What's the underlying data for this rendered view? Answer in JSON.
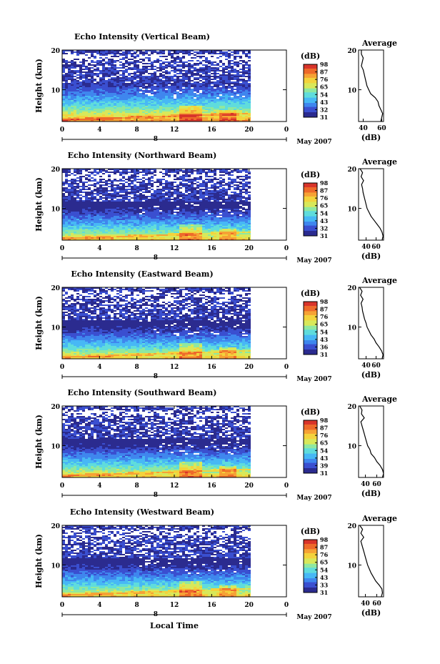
{
  "figure": {
    "xlabel": "Local Time",
    "date_label": "May 2007",
    "day_label": "8",
    "avg_title": "Average",
    "avg_xlabel": "(dB)",
    "cb_unit": "(dB)",
    "ylabel": "Height (km)"
  },
  "colors": {
    "scale": [
      "#2b2b8f",
      "#3a4fd0",
      "#3f86ee",
      "#47b8f5",
      "#5fdcdc",
      "#8fe8a0",
      "#d8e85a",
      "#f3d33c",
      "#f6a235",
      "#ee6a2a",
      "#d8342a"
    ]
  },
  "chart_data": [
    {
      "type": "heatmap",
      "title": "Echo Intensity (Vertical Beam)",
      "ylabel": "Height (km)",
      "xlabel": "",
      "x_ticks": [
        "0",
        "4",
        "8",
        "12",
        "16",
        "20",
        "0"
      ],
      "xlim": [
        0,
        24
      ],
      "y_ticks": [
        "10",
        "20"
      ],
      "ylim": [
        2,
        20
      ],
      "data_xlim": [
        0,
        20
      ],
      "colorbar": {
        "label": "(dB)",
        "ticks": [
          "31",
          "32",
          "43",
          "54",
          "65",
          "76",
          "87",
          "98"
        ]
      },
      "base_intensity": 62,
      "profile": {
        "title": "Average",
        "xlabel": "(dB)",
        "x_ticks": [
          "40",
          "60"
        ],
        "xlim": [
          35,
          62
        ],
        "y_ticks": [
          "10",
          "20"
        ],
        "heights": [
          2,
          3,
          4,
          5,
          6,
          7,
          8,
          9,
          10,
          11,
          12,
          13,
          14,
          15,
          16,
          17,
          18,
          19,
          20
        ],
        "values": [
          59,
          60,
          61,
          59,
          57,
          56,
          53,
          48,
          46,
          44,
          43,
          42,
          41,
          40,
          38,
          39,
          40,
          38,
          38
        ]
      }
    },
    {
      "type": "heatmap",
      "title": "Echo Intensity (Northward Beam)",
      "ylabel": "Height (km)",
      "xlabel": "",
      "x_ticks": [
        "0",
        "4",
        "8",
        "12",
        "16",
        "20",
        "0"
      ],
      "xlim": [
        0,
        24
      ],
      "y_ticks": [
        "10",
        "20"
      ],
      "ylim": [
        2,
        20
      ],
      "data_xlim": [
        0,
        20
      ],
      "colorbar": {
        "label": "(dB)",
        "ticks": [
          "31",
          "32",
          "43",
          "54",
          "65",
          "76",
          "87",
          "98"
        ]
      },
      "base_intensity": 55,
      "profile": {
        "title": "Average",
        "xlabel": "(dB)",
        "x_ticks": [
          "40",
          "60"
        ],
        "xlim": [
          25,
          75
        ],
        "y_ticks": [
          "10",
          "20"
        ],
        "heights": [
          2,
          3,
          4,
          5,
          6,
          7,
          8,
          9,
          10,
          11,
          12,
          13,
          14,
          15,
          16,
          17,
          18,
          19,
          20
        ],
        "values": [
          72,
          74,
          72,
          68,
          62,
          56,
          50,
          46,
          42,
          40,
          38,
          36,
          34,
          33,
          31,
          35,
          30,
          33,
          28
        ]
      }
    },
    {
      "type": "heatmap",
      "title": "Echo Intensity (Eastward Beam)",
      "ylabel": "Height (km)",
      "xlabel": "",
      "x_ticks": [
        "0",
        "4",
        "8",
        "12",
        "16",
        "20",
        "0"
      ],
      "xlim": [
        0,
        24
      ],
      "y_ticks": [
        "10",
        "20"
      ],
      "ylim": [
        2,
        20
      ],
      "data_xlim": [
        0,
        20
      ],
      "colorbar": {
        "label": "(dB)",
        "ticks": [
          "31",
          "36",
          "43",
          "54",
          "65",
          "76",
          "87",
          "98"
        ]
      },
      "base_intensity": 55,
      "profile": {
        "title": "Average",
        "xlabel": "(dB)",
        "x_ticks": [
          "40",
          "60"
        ],
        "xlim": [
          25,
          75
        ],
        "y_ticks": [
          "10",
          "20"
        ],
        "heights": [
          2,
          3,
          4,
          5,
          6,
          7,
          8,
          9,
          10,
          11,
          12,
          13,
          14,
          15,
          16,
          17,
          18,
          19,
          20
        ],
        "values": [
          72,
          74,
          71,
          66,
          60,
          56,
          50,
          46,
          42,
          40,
          37,
          35,
          33,
          32,
          30,
          34,
          29,
          32,
          27
        ]
      }
    },
    {
      "type": "heatmap",
      "title": "Echo Intensity (Southward Beam)",
      "ylabel": "Height (km)",
      "xlabel": "",
      "x_ticks": [
        "0",
        "4",
        "8",
        "12",
        "16",
        "20",
        "0"
      ],
      "xlim": [
        0,
        24
      ],
      "y_ticks": [
        "10",
        "20"
      ],
      "ylim": [
        2,
        20
      ],
      "data_xlim": [
        0,
        20
      ],
      "colorbar": {
        "label": "(dB)",
        "ticks": [
          "31",
          "39",
          "43",
          "54",
          "65",
          "76",
          "87",
          "98"
        ]
      },
      "base_intensity": 56,
      "profile": {
        "title": "Average",
        "xlabel": "(dB)",
        "x_ticks": [
          "40",
          "60"
        ],
        "xlim": [
          28,
          72
        ],
        "y_ticks": [
          "10",
          "20"
        ],
        "heights": [
          2,
          3,
          4,
          5,
          6,
          7,
          8,
          9,
          10,
          11,
          12,
          13,
          14,
          15,
          16,
          17,
          18,
          19,
          20
        ],
        "values": [
          70,
          72,
          70,
          66,
          60,
          56,
          50,
          48,
          44,
          42,
          40,
          38,
          36,
          34,
          32,
          38,
          33,
          34,
          30
        ]
      }
    },
    {
      "type": "heatmap",
      "title": "Echo Intensity (Westward Beam)",
      "ylabel": "Height (km)",
      "xlabel": "Local Time",
      "x_ticks": [
        "0",
        "4",
        "8",
        "12",
        "16",
        "20",
        "0"
      ],
      "xlim": [
        0,
        24
      ],
      "y_ticks": [
        "10",
        "20"
      ],
      "ylim": [
        2,
        20
      ],
      "data_xlim": [
        0,
        20
      ],
      "colorbar": {
        "label": "(dB)",
        "ticks": [
          "31",
          "33",
          "43",
          "54",
          "65",
          "76",
          "87",
          "98"
        ]
      },
      "base_intensity": 55,
      "profile": {
        "title": "Average",
        "xlabel": "(dB)",
        "x_ticks": [
          "40",
          "60"
        ],
        "xlim": [
          28,
          72
        ],
        "y_ticks": [
          "10",
          "20"
        ],
        "heights": [
          2,
          3,
          4,
          5,
          6,
          7,
          8,
          9,
          10,
          11,
          12,
          13,
          14,
          15,
          16,
          17,
          18,
          19,
          20
        ],
        "values": [
          68,
          70,
          69,
          64,
          58,
          54,
          50,
          47,
          44,
          42,
          40,
          38,
          36,
          34,
          32,
          37,
          32,
          35,
          30
        ]
      }
    }
  ]
}
